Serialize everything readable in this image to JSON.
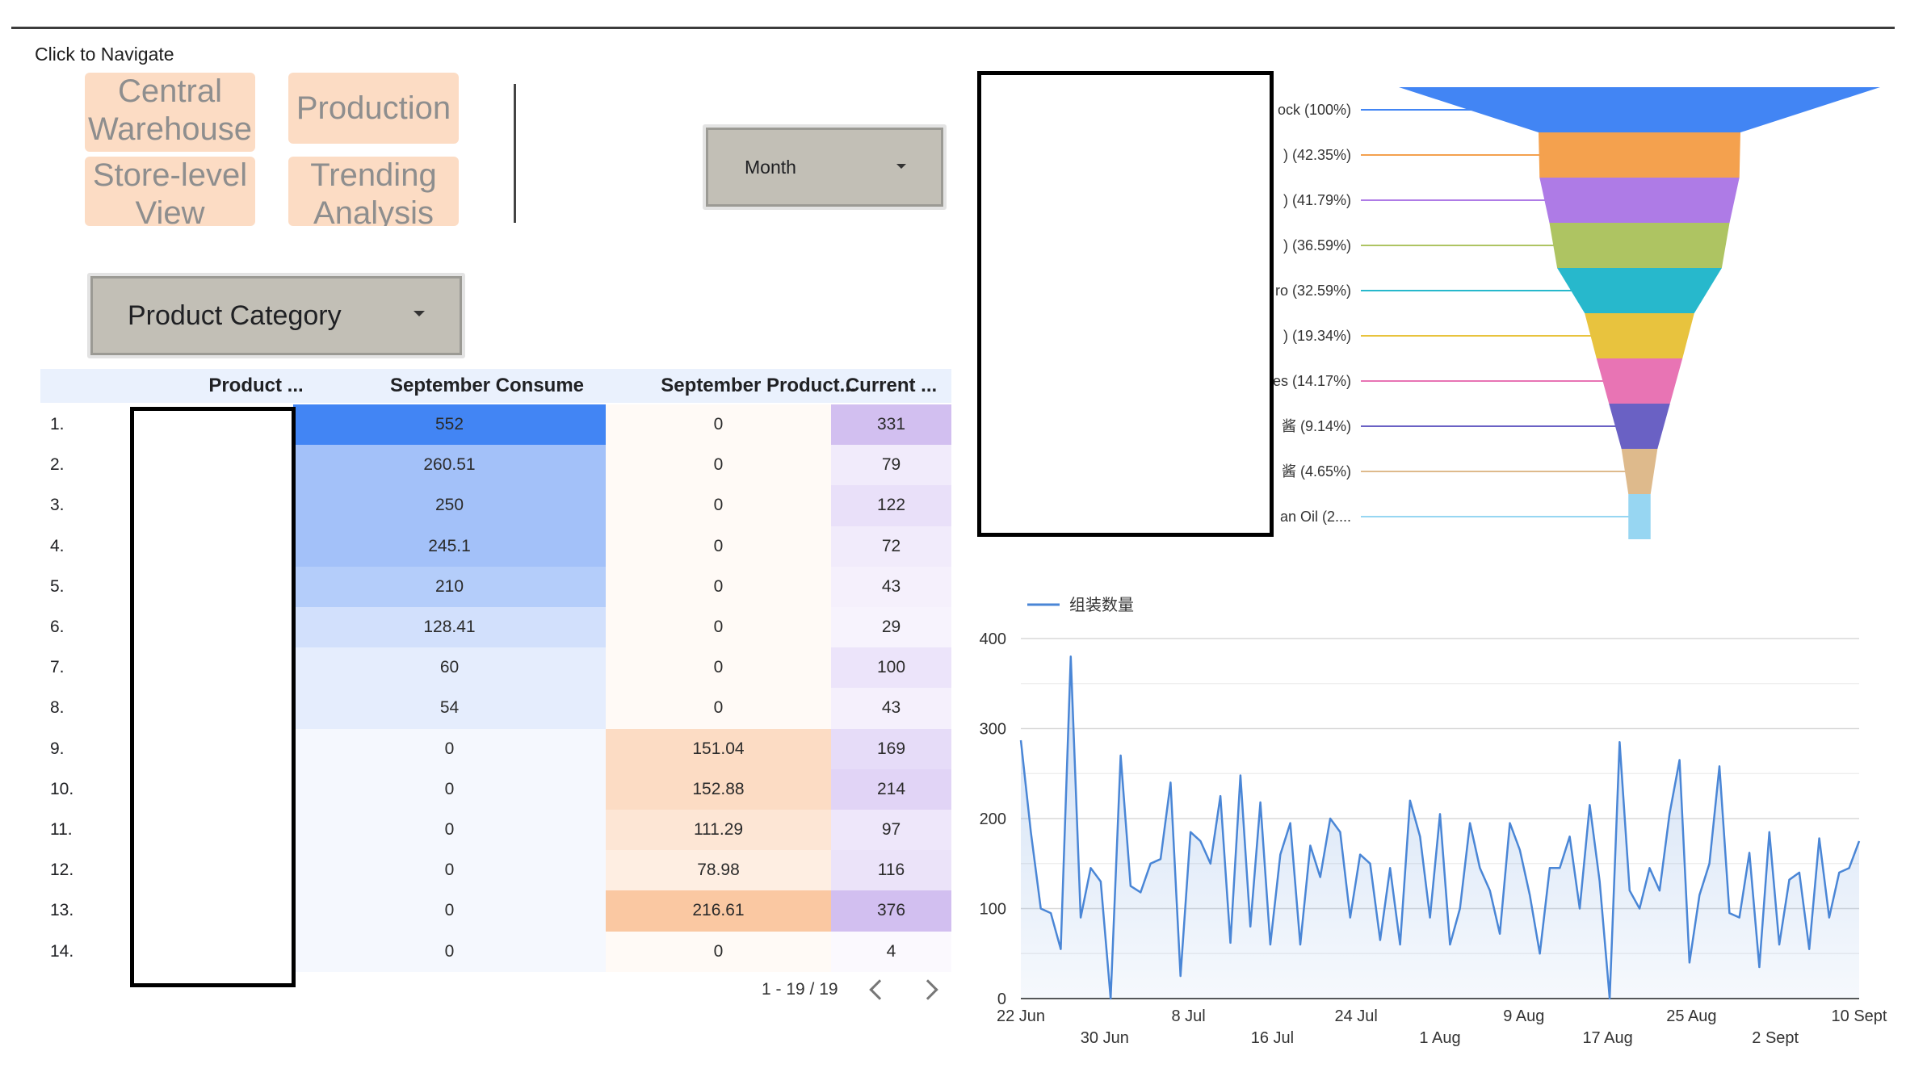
{
  "nav": {
    "caption": "Click to Navigate",
    "buttons": [
      {
        "line1": "Central",
        "line2": "Warehouse"
      },
      {
        "line1": "Production",
        "line2": ""
      },
      {
        "line1": "Store-level",
        "line2": "View"
      },
      {
        "line1": "Trending",
        "line2": "Analysis"
      }
    ]
  },
  "filters": {
    "month_label": "Month",
    "category_label": "Product Category"
  },
  "table": {
    "headers": [
      "Product ...",
      "September Consume",
      "September Product...",
      "Current ..."
    ],
    "rows": [
      {
        "n": "1.",
        "consume": "552",
        "product": "0",
        "current": "331",
        "cbg": "#4285f4",
        "pbg": "#fffaf6",
        "kbg": "#d2bff0"
      },
      {
        "n": "2.",
        "consume": "260.51",
        "product": "0",
        "current": "79",
        "cbg": "#a3c1f9",
        "pbg": "#fffaf6",
        "kbg": "#f1ebfb"
      },
      {
        "n": "3.",
        "consume": "250",
        "product": "0",
        "current": "122",
        "cbg": "#a3c1f9",
        "pbg": "#fffaf6",
        "kbg": "#e9e0f9"
      },
      {
        "n": "4.",
        "consume": "245.1",
        "product": "0",
        "current": "72",
        "cbg": "#a3c1f9",
        "pbg": "#fffaf6",
        "kbg": "#f1ebfb"
      },
      {
        "n": "5.",
        "consume": "210",
        "product": "0",
        "current": "43",
        "cbg": "#b4cdfa",
        "pbg": "#fffaf6",
        "kbg": "#f5f0fc"
      },
      {
        "n": "6.",
        "consume": "128.41",
        "product": "0",
        "current": "29",
        "cbg": "#d2e0fc",
        "pbg": "#fffaf6",
        "kbg": "#f7f3fd"
      },
      {
        "n": "7.",
        "consume": "60",
        "product": "0",
        "current": "100",
        "cbg": "#e5edfd",
        "pbg": "#fffaf6",
        "kbg": "#ece4fa"
      },
      {
        "n": "8.",
        "consume": "54",
        "product": "0",
        "current": "43",
        "cbg": "#e5edfd",
        "pbg": "#fffaf6",
        "kbg": "#f5f0fc"
      },
      {
        "n": "9.",
        "consume": "0",
        "product": "151.04",
        "current": "169",
        "cbg": "#f5f8fe",
        "pbg": "#fcdcc4",
        "kbg": "#e6dcf8"
      },
      {
        "n": "10.",
        "consume": "0",
        "product": "152.88",
        "current": "214",
        "cbg": "#f5f8fe",
        "pbg": "#fcdcc4",
        "kbg": "#e1d4f6"
      },
      {
        "n": "11.",
        "consume": "0",
        "product": "111.29",
        "current": "97",
        "cbg": "#f5f8fe",
        "pbg": "#fde6d5",
        "kbg": "#eee7fa"
      },
      {
        "n": "12.",
        "consume": "0",
        "product": "78.98",
        "current": "116",
        "cbg": "#f5f8fe",
        "pbg": "#feeee2",
        "kbg": "#ebe3f9"
      },
      {
        "n": "13.",
        "consume": "0",
        "product": "216.61",
        "current": "376",
        "cbg": "#f5f8fe",
        "pbg": "#fac8a2",
        "kbg": "#d2bff0"
      },
      {
        "n": "14.",
        "consume": "0",
        "product": "0",
        "current": "4",
        "cbg": "#f5f8fe",
        "pbg": "#fffaf6",
        "kbg": "#fbf9fe"
      }
    ],
    "pagination": "1 - 19 / 19"
  },
  "funnel": {
    "labels": [
      "ock (100%)",
      ") (42.35%)",
      ") (41.79%)",
      ") (36.59%)",
      "ro (32.59%)",
      ") (19.34%)",
      "es (14.17%)",
      "酱 (9.14%)",
      "酱 (4.65%)",
      "an Oil (2...."
    ],
    "colors": [
      "#4285f4",
      "#f4a14e",
      "#ae7be6",
      "#aec462",
      "#27b8cc",
      "#e8c33e",
      "#e874b4",
      "#6a61c4",
      "#deba8c",
      "#97d6f2"
    ],
    "values": [
      100,
      42.35,
      41.79,
      36.59,
      32.59,
      19.34,
      14.17,
      9.14,
      4.65,
      2.5
    ]
  },
  "chart_data": {
    "type": "area",
    "legend": "组装数量",
    "ylim": [
      0,
      400
    ],
    "yticks": [
      "0",
      "100",
      "200",
      "300",
      "400"
    ],
    "xticks_top": [
      "22 Jun",
      "8 Jul",
      "24 Jul",
      "9 Aug",
      "25 Aug",
      "10 Sept"
    ],
    "xticks_bottom": [
      "30 Jun",
      "16 Jul",
      "1 Aug",
      "17 Aug",
      "2 Sept"
    ],
    "color": "#4a86d6",
    "values": [
      287,
      185,
      100,
      95,
      55,
      380,
      90,
      145,
      130,
      0,
      270,
      125,
      118,
      150,
      155,
      240,
      25,
      185,
      175,
      150,
      225,
      62,
      248,
      80,
      218,
      60,
      160,
      195,
      60,
      170,
      135,
      200,
      185,
      90,
      160,
      150,
      65,
      145,
      60,
      220,
      180,
      90,
      205,
      60,
      100,
      195,
      145,
      120,
      72,
      195,
      165,
      115,
      50,
      145,
      145,
      180,
      100,
      215,
      130,
      0,
      285,
      120,
      100,
      145,
      120,
      205,
      265,
      40,
      115,
      150,
      258,
      95,
      90,
      162,
      35,
      185,
      60,
      132,
      140,
      55,
      178,
      90,
      140,
      145,
      175
    ]
  }
}
